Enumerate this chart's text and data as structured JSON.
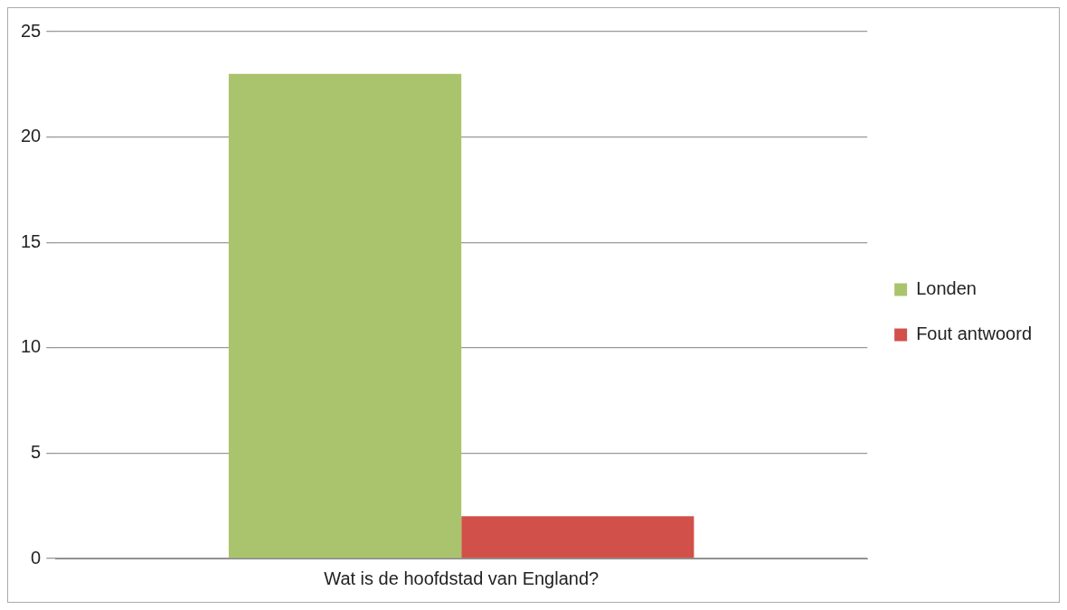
{
  "chart_data": {
    "type": "bar",
    "categories": [
      "Wat is de hoofdstad van England?"
    ],
    "series": [
      {
        "name": "Londen",
        "color": "#a9c46c",
        "values": [
          23
        ]
      },
      {
        "name": "Fout antwoord",
        "color": "#d2504a",
        "values": [
          2
        ]
      }
    ],
    "ylim": [
      0,
      25
    ],
    "yticks": [
      0,
      5,
      10,
      15,
      20,
      25
    ],
    "grid": "y",
    "legend": "right"
  }
}
